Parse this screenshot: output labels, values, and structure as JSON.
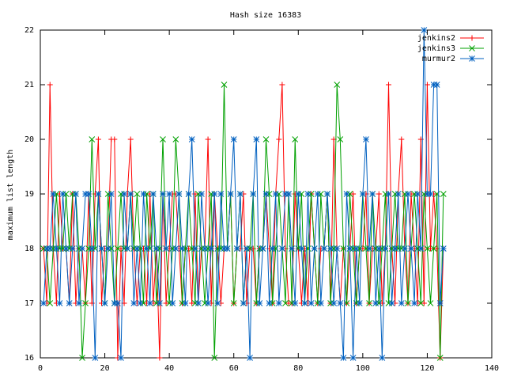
{
  "chart_data": {
    "type": "line",
    "title": "Hash size 16383",
    "xlabel": "",
    "ylabel": "maximum list length",
    "xlim": [
      0,
      140
    ],
    "ylim": [
      16,
      22
    ],
    "xticks": [
      "0",
      "20",
      "40",
      "60",
      "80",
      "100",
      "120",
      "140"
    ],
    "yticks": [
      "16",
      "17",
      "18",
      "19",
      "20",
      "21",
      "22"
    ],
    "grid": false,
    "legend_position": "top-right",
    "x": [
      1,
      2,
      3,
      4,
      5,
      6,
      7,
      8,
      9,
      10,
      11,
      12,
      13,
      14,
      15,
      16,
      17,
      18,
      19,
      20,
      21,
      22,
      23,
      24,
      25,
      26,
      27,
      28,
      29,
      30,
      31,
      32,
      33,
      34,
      35,
      36,
      37,
      38,
      39,
      40,
      41,
      42,
      43,
      44,
      45,
      46,
      47,
      48,
      49,
      50,
      51,
      52,
      53,
      54,
      55,
      56,
      57,
      58,
      59,
      60,
      61,
      62,
      63,
      64,
      65,
      66,
      67,
      68,
      69,
      70,
      71,
      72,
      73,
      74,
      75,
      76,
      77,
      78,
      79,
      80,
      81,
      82,
      83,
      84,
      85,
      86,
      87,
      88,
      89,
      90,
      91,
      92,
      93,
      94,
      95,
      96,
      97,
      98,
      99,
      100,
      101,
      102,
      103,
      104,
      105,
      106,
      107,
      108,
      109,
      110,
      111,
      112,
      113,
      114,
      115,
      116,
      117,
      118,
      119,
      120,
      121,
      122,
      123,
      124,
      125
    ],
    "series": [
      {
        "name": "jenkins2",
        "color": "#ff0000",
        "marker": "+",
        "values": [
          18,
          17,
          21,
          18,
          17,
          19,
          18,
          18,
          17,
          19,
          17,
          18,
          18,
          17,
          19,
          17,
          19,
          20,
          17,
          18,
          18,
          20,
          20,
          16,
          18,
          17,
          19,
          20,
          18,
          17,
          18,
          18,
          17,
          19,
          17,
          18,
          16,
          19,
          17,
          18,
          19,
          19,
          18,
          17,
          18,
          18,
          17,
          19,
          17,
          18,
          18,
          20,
          17,
          19,
          18,
          17,
          18,
          18,
          19,
          17,
          18,
          18,
          19,
          17,
          18,
          18,
          17,
          18,
          18,
          19,
          18,
          17,
          19,
          20,
          21,
          18,
          17,
          17,
          19,
          18,
          17,
          18,
          17,
          19,
          18,
          17,
          18,
          18,
          19,
          17,
          20,
          18,
          17,
          18,
          17,
          18,
          19,
          17,
          18,
          18,
          19,
          17,
          18,
          18,
          19,
          17,
          18,
          21,
          18,
          17,
          19,
          20,
          18,
          17,
          19,
          18,
          17,
          20,
          17,
          21,
          18,
          19,
          18,
          16,
          18
        ]
      },
      {
        "name": "jenkins3",
        "color": "#00a000",
        "marker": "x",
        "values": [
          18,
          18,
          17,
          18,
          19,
          18,
          18,
          19,
          18,
          19,
          19,
          18,
          16,
          17,
          18,
          20,
          18,
          19,
          18,
          17,
          19,
          18,
          17,
          18,
          19,
          18,
          18,
          19,
          18,
          19,
          18,
          17,
          19,
          18,
          19,
          17,
          18,
          20,
          18,
          17,
          18,
          20,
          19,
          17,
          18,
          19,
          18,
          17,
          19,
          18,
          17,
          18,
          19,
          16,
          18,
          18,
          21,
          18,
          19,
          17,
          18,
          19,
          17,
          18,
          18,
          19,
          17,
          18,
          18,
          20,
          19,
          17,
          18,
          19,
          18,
          17,
          19,
          17,
          20,
          18,
          19,
          17,
          18,
          19,
          18,
          17,
          19,
          18,
          19,
          17,
          18,
          21,
          20,
          18,
          17,
          19,
          18,
          17,
          18,
          19,
          18,
          17,
          19,
          18,
          17,
          18,
          19,
          17,
          18,
          19,
          18,
          18,
          19,
          17,
          18,
          19,
          18,
          17,
          19,
          18,
          17,
          18,
          19,
          16,
          19
        ]
      },
      {
        "name": "murmur2",
        "color": "#0060c0",
        "marker": "*",
        "values": [
          17,
          18,
          18,
          19,
          18,
          17,
          19,
          18,
          17,
          18,
          19,
          17,
          18,
          19,
          19,
          18,
          16,
          19,
          18,
          17,
          18,
          19,
          17,
          17,
          16,
          19,
          18,
          19,
          17,
          18,
          17,
          19,
          18,
          17,
          19,
          18,
          17,
          19,
          18,
          19,
          17,
          18,
          19,
          18,
          17,
          19,
          20,
          18,
          17,
          19,
          18,
          17,
          18,
          19,
          17,
          19,
          18,
          18,
          19,
          20,
          18,
          19,
          17,
          18,
          16,
          19,
          20,
          17,
          18,
          19,
          17,
          18,
          19,
          17,
          18,
          19,
          19,
          18,
          17,
          19,
          18,
          17,
          19,
          17,
          18,
          19,
          17,
          18,
          19,
          18,
          17,
          18,
          17,
          16,
          19,
          18,
          16,
          18,
          17,
          19,
          20,
          18,
          19,
          17,
          18,
          16,
          18,
          19,
          17,
          18,
          19,
          17,
          18,
          19,
          18,
          17,
          19,
          18,
          22,
          19,
          19,
          21,
          21,
          17,
          18
        ]
      }
    ]
  }
}
